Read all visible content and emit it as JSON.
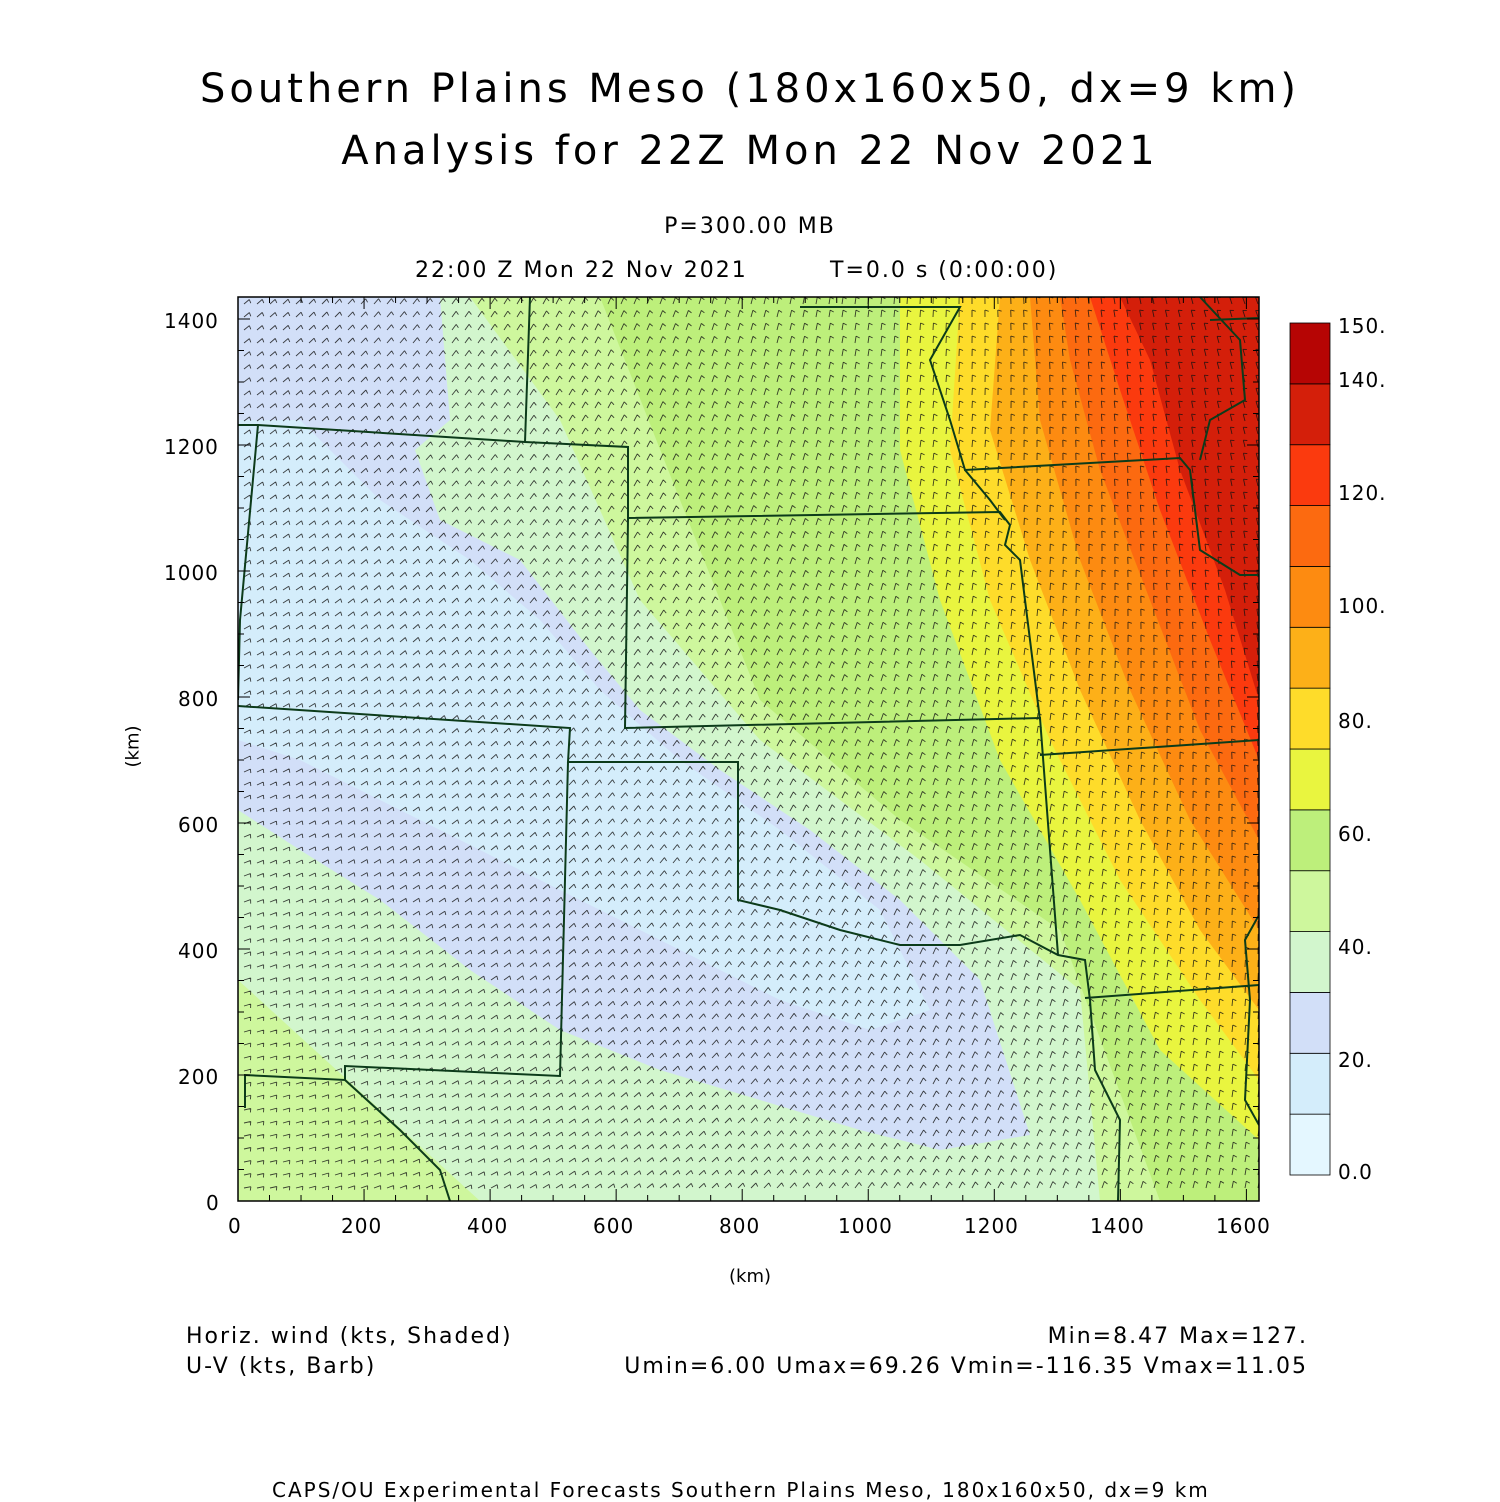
{
  "title": {
    "line1": "Southern Plains Meso (180x160x50, dx=9 km)",
    "line2": "Analysis for 22Z Mon 22 Nov 2021"
  },
  "subtitle": {
    "level": "P=300.00 MB",
    "valid_time": "22:00 Z Mon 22 Nov 2021",
    "forecast_time": "T=0.0 s (0:00:00)"
  },
  "axes": {
    "xlabel": "(km)",
    "ylabel": "(km)",
    "xticks": [
      "0",
      "200",
      "400",
      "600",
      "800",
      "1000",
      "1200",
      "1400",
      "1600"
    ],
    "yticks": [
      "0",
      "200",
      "400",
      "600",
      "800",
      "1000",
      "1200",
      "1400"
    ]
  },
  "colorbar": {
    "labels": [
      "0.0",
      "20.",
      "40.",
      "60.",
      "80.",
      "100.",
      "120.",
      "140.",
      "150."
    ],
    "colors": [
      "#e4f7ff",
      "#d4edfb",
      "#d2dff8",
      "#d2f6cd",
      "#cef79d",
      "#bdef7b",
      "#e9f53f",
      "#fedc2a",
      "#fdb018",
      "#fd8b11",
      "#fc6a10",
      "#fb3a0e",
      "#d41f0a",
      "#b60504"
    ]
  },
  "footer": {
    "left1": "Horiz. wind (kts, Shaded)",
    "left2": "U-V (kts, Barb)",
    "right1": "Min=8.47 Max=127.",
    "right2": "Umin=6.00 Umax=69.26 Vmin=-116.35 Vmax=11.05",
    "credit": "CAPS/OU Experimental Forecasts  Southern Plains Meso, 180x160x50, dx=9 km"
  },
  "colors": {
    "border": "#0c3b1a",
    "barb": "#111111"
  }
}
